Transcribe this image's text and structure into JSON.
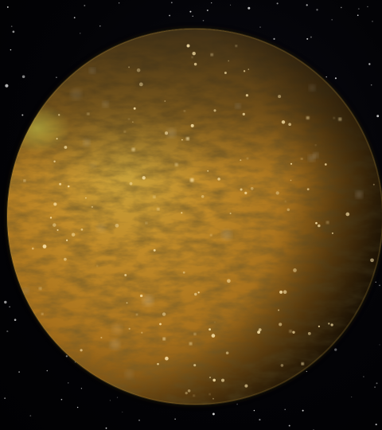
{
  "scene": {
    "subject": "planet-icon",
    "background": "starfield",
    "colors": {
      "space": "#020205",
      "planet_highlight": "#c9a43a",
      "planet_base": "#b07a20",
      "planet_shadow": "#2a1a05",
      "cloud_band": "#3a2a12",
      "star": "#ffffff",
      "sparkle": "#ffe9b0"
    }
  }
}
